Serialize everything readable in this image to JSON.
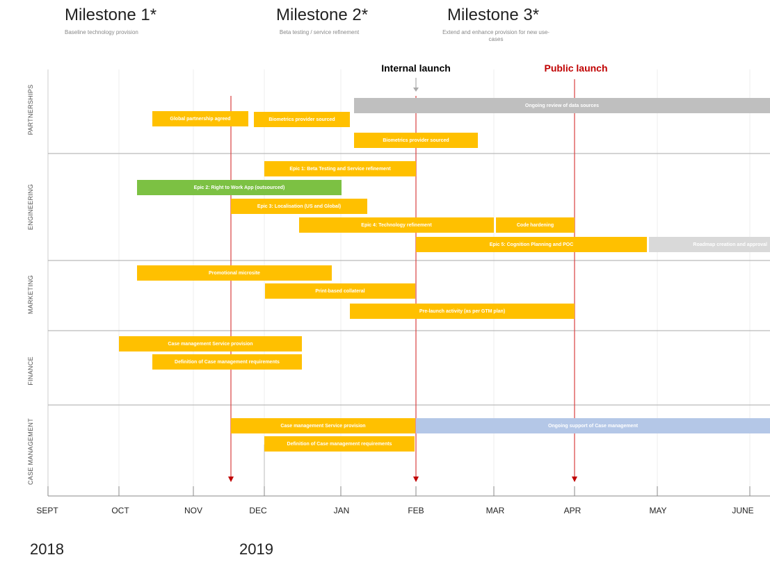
{
  "milestones": [
    {
      "title": "Milestone 1*",
      "subtitle": "Baseline technology provision"
    },
    {
      "title": "Milestone 2*",
      "subtitle": "Beta testing / service refinement"
    },
    {
      "title": "Milestone 3*",
      "subtitle": "Extend and enhance provision for new use-cases"
    }
  ],
  "launches": {
    "internal": {
      "label": "Internal launch",
      "color": "#222222"
    },
    "public": {
      "label": "Public launch",
      "color": "#C00000"
    }
  },
  "lanes": [
    "PARTNERSHIPS",
    "ENGINEERING",
    "MARKETING",
    "FINANCE",
    "CASE MANAGEMENT"
  ],
  "months": [
    "SEPT",
    "OCT",
    "NOV",
    "DEC",
    "JAN",
    "FEB",
    "MAR",
    "APR",
    "MAY",
    "JUNE"
  ],
  "years": [
    "2018",
    "2019"
  ],
  "colors": {
    "orange": "#FFC000",
    "green": "#7CC143",
    "gray": "#BFBFBF",
    "lightgray": "#D9D9D9",
    "blue": "#B4C7E7",
    "marker_red": "#C00000"
  },
  "bars": {
    "p1": "Ongoing review of data sources",
    "p2": "Global partnership agreed",
    "p3": "Biometrics provider sourced",
    "p4": "Biometrics provider sourced",
    "e1": "Epic 1: Beta Testing and Service refinement",
    "e2": "Epic 2: Right to Work App (outsourced)",
    "e3": "Epic 3: Localisation (US and Global)",
    "e4": "Epic 4: Technology refinement",
    "e5": "Code hardening",
    "e6": "Epic 5: Cognition Planning and POC",
    "e7": "Roadmap creation and approval",
    "m1": "Promotional microsite",
    "m2": "Print-based collateral",
    "m3": "Pre-launch activity (as per GTM plan)",
    "f1": "Case management Service provision",
    "f2": "Definition of Case management requirements",
    "c1": "Case management Service provision",
    "c2": "Ongoing support of Case management",
    "c3": "Definition of Case management requirements"
  }
}
